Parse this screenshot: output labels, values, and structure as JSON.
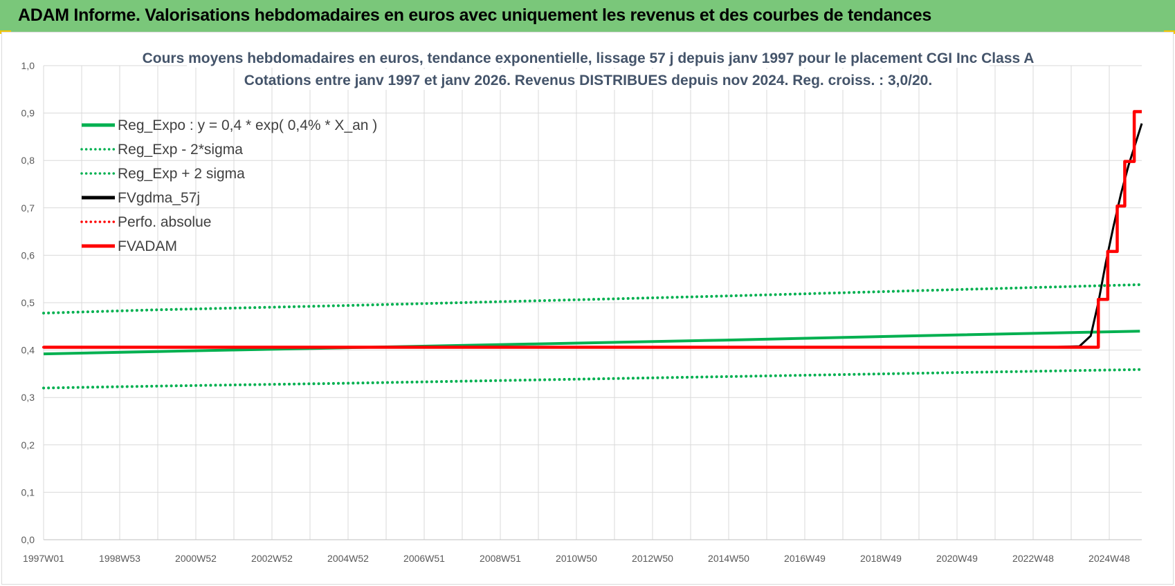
{
  "banner": {
    "title": "ADAM Informe. Valorisations hebdomadaires en euros avec uniquement les revenus et des courbes de tendances",
    "background": "#7ac77a"
  },
  "chart_data": {
    "type": "line",
    "title_lines": [
      "Cours moyens hebdomadaires en euros, tendance exponentielle, lissage 57 j depuis janv 1997  pour le placement CGI Inc Class A",
      "Cotations entre janv 1997 et janv 2026. Revenus DISTRIBUES depuis nov 2024.  Reg. croiss. : 3,0/20."
    ],
    "xlabel": "",
    "ylabel": "",
    "x_tick_labels": [
      "1997W01",
      "1998W53",
      "2000W52",
      "2002W52",
      "2004W52",
      "2006W51",
      "2008W51",
      "2010W50",
      "2012W50",
      "2014W50",
      "2016W49",
      "2018W49",
      "2020W49",
      "2022W48",
      "2024W48"
    ],
    "x_range": [
      1997.0,
      2026.05
    ],
    "y_tick_labels": [
      "0,0",
      "0,1",
      "0,2",
      "0,3",
      "0,4",
      "0,5",
      "0,6",
      "0,7",
      "0,8",
      "0,9",
      "1,0"
    ],
    "ylim": [
      0,
      1.0
    ],
    "grid": true,
    "legend_position": "top-left",
    "series": [
      {
        "name": "Reg_Expo : y = 0,4 * exp( 0,4% *  X_an )",
        "color": "#00b050",
        "style": "solid",
        "x": [
          1997.0,
          2000.0,
          2005.0,
          2010.0,
          2015.0,
          2020.0,
          2026.0
        ],
        "y": [
          0.392,
          0.397,
          0.405,
          0.413,
          0.421,
          0.43,
          0.44
        ]
      },
      {
        "name": "Reg_Exp - 2*sigma",
        "color": "#00b050",
        "style": "dotted",
        "x": [
          1997.0,
          2000.0,
          2005.0,
          2010.0,
          2015.0,
          2020.0,
          2026.0
        ],
        "y": [
          0.32,
          0.324,
          0.33,
          0.337,
          0.344,
          0.351,
          0.359
        ]
      },
      {
        "name": "Reg_Exp + 2 sigma",
        "color": "#00b050",
        "style": "dotted",
        "x": [
          1997.0,
          2000.0,
          2005.0,
          2010.0,
          2015.0,
          2020.0,
          2026.0
        ],
        "y": [
          0.478,
          0.485,
          0.494,
          0.504,
          0.514,
          0.525,
          0.538
        ]
      },
      {
        "name": "FVgdma_57j",
        "color": "#000000",
        "style": "solid",
        "x": [
          1997.0,
          2023.5,
          2024.4,
          2024.7,
          2024.9,
          2025.1,
          2025.3,
          2025.5,
          2025.7,
          2025.9,
          2026.05
        ],
        "y": [
          0.406,
          0.406,
          0.408,
          0.43,
          0.5,
          0.585,
          0.66,
          0.73,
          0.79,
          0.84,
          0.878
        ]
      },
      {
        "name": "Perfo. absolue",
        "color": "#ff0000",
        "style": "dotted",
        "x": [
          1997.0,
          2024.9
        ],
        "y": [
          0.406,
          0.406
        ]
      },
      {
        "name": "FVADAM",
        "color": "#ff0000",
        "style": "solid",
        "x": [
          1997.0,
          2024.9,
          2024.9,
          2025.15,
          2025.15,
          2025.4,
          2025.4,
          2025.6,
          2025.6,
          2025.85,
          2025.85,
          2026.05
        ],
        "y": [
          0.406,
          0.406,
          0.507,
          0.507,
          0.608,
          0.608,
          0.704,
          0.704,
          0.798,
          0.798,
          0.903,
          0.903
        ]
      }
    ]
  }
}
